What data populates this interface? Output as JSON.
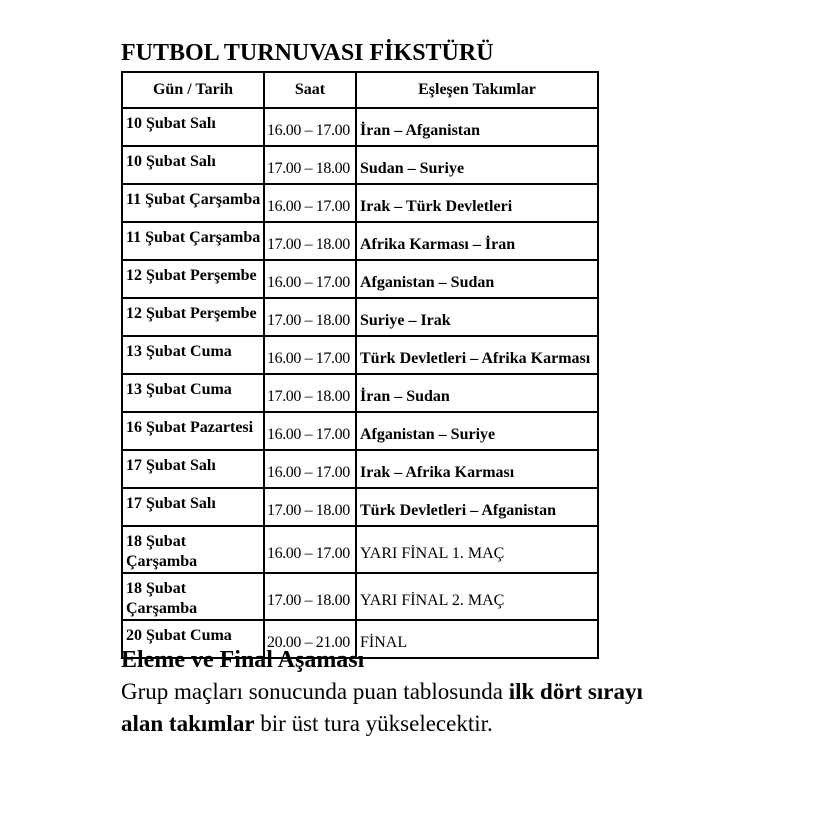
{
  "title": "FUTBOL TURNUVASI FİKSTÜRÜ",
  "table": {
    "headers": {
      "date": "Gün / Tarih",
      "time": "Saat",
      "teams": "Eşleşen Takımlar"
    },
    "rows": [
      {
        "date": "10 Şubat Salı",
        "time": "16.00 – 17.00",
        "match": "İran – Afganistan"
      },
      {
        "date": "10 Şubat Salı",
        "time": "17.00 – 18.00",
        "match": "Sudan – Suriye"
      },
      {
        "date": "11 Şubat Çarşamba",
        "time": "16.00 – 17.00",
        "match": "Irak – Türk Devletleri"
      },
      {
        "date": "11 Şubat Çarşamba",
        "time": "17.00 – 18.00",
        "match": "Afrika Karması – İran"
      },
      {
        "date": "12 Şubat Perşembe",
        "time": "16.00 – 17.00",
        "match": "Afganistan – Sudan"
      },
      {
        "date": "12 Şubat Perşembe",
        "time": "17.00 – 18.00",
        "match": "Suriye – Irak"
      },
      {
        "date": "13 Şubat Cuma",
        "time": "16.00 – 17.00",
        "match": "Türk Devletleri – Afrika Karması"
      },
      {
        "date": "13 Şubat Cuma",
        "time": "17.00 – 18.00",
        "match": "İran – Sudan"
      },
      {
        "date": "16 Şubat Pazartesi",
        "time": "16.00 – 17.00",
        "match": "Afganistan – Suriye"
      },
      {
        "date": "17 Şubat Salı",
        "time": "16.00 – 17.00",
        "match": "Irak – Afrika Karması"
      },
      {
        "date": "17 Şubat Salı",
        "time": "17.00 – 18.00",
        "match": "Türk Devletleri – Afganistan"
      },
      {
        "date": "18 Şubat Çarşamba",
        "time": "16.00 – 17.00",
        "match": "YARI FİNAL 1. MAÇ"
      },
      {
        "date": "18 Şubat Çarşamba",
        "time": "17.00 – 18.00",
        "match": "YARI FİNAL 2. MAÇ"
      },
      {
        "date": "20 Şubat Cuma",
        "time": "20.00 – 21.00",
        "match": "FİNAL"
      }
    ]
  },
  "footer": {
    "heading": "Eleme ve Final Aşaması",
    "line1_regular": "Grup maçları sonucunda puan tablosunda ",
    "line1_bold": "ilk dört sırayı",
    "line2_bold": "alan takımlar",
    "line2_regular": " bir üst tura yükselecektir."
  },
  "colors": {
    "text": "#000000",
    "border": "#000000",
    "background": "#ffffff"
  }
}
